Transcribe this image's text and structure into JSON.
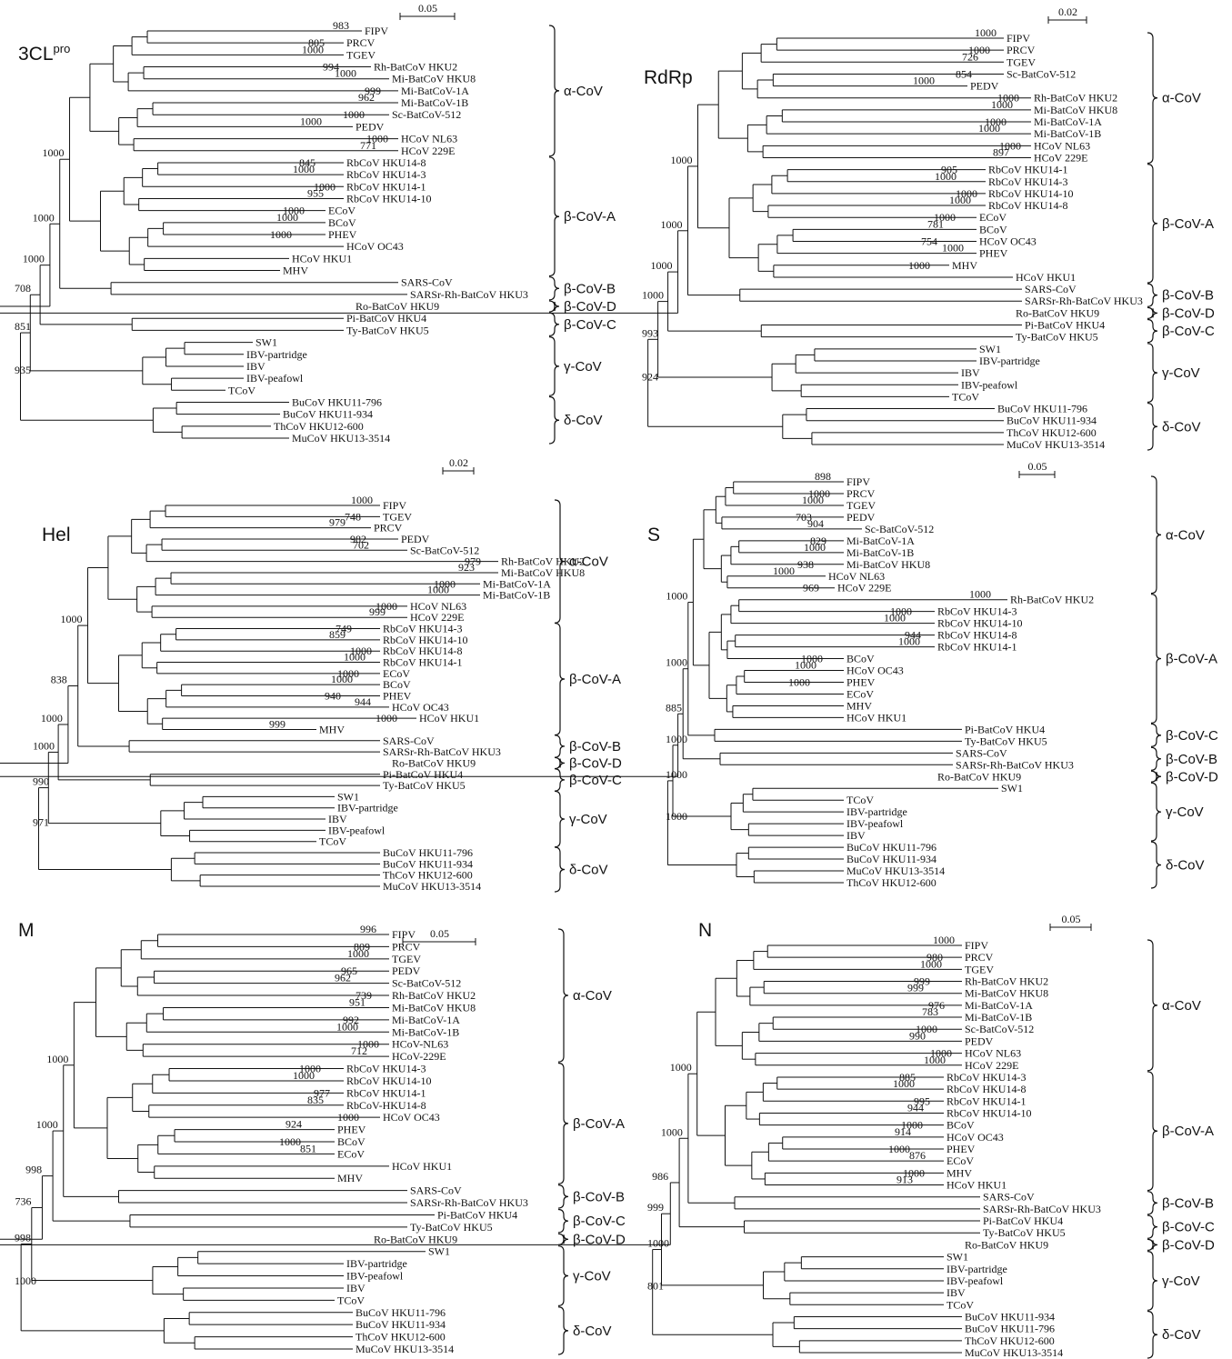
{
  "panels": [
    {
      "title": "3CL",
      "title_sup": "pro",
      "scale_label": "0.05",
      "tips": [
        "FIPV",
        "PRCV",
        "TGEV",
        "Rh-BatCoV HKU2",
        "Mi-BatCoV HKU8",
        "Mi-BatCoV-1A",
        "Mi-BatCoV-1B",
        "Sc-BatCoV-512",
        "PEDV",
        "HCoV NL63",
        "HCoV 229E",
        "RbCoV HKU14-8",
        "RbCoV HKU14-3",
        "RbCoV HKU14-1",
        "RbCoV HKU14-10",
        "ECoV",
        "BCoV",
        "PHEV",
        "HCoV OC43",
        "HCoV HKU1",
        "MHV",
        "SARS-CoV",
        "SARSr-Rh-BatCoV HKU3",
        "Ro-BatCoV HKU9",
        "Pi-BatCoV HKU4",
        "Ty-BatCoV HKU5",
        "SW1",
        "IBV-partridge",
        "IBV",
        "IBV-peafowl",
        "TCoV",
        "BuCoV HKU11-796",
        "BuCoV HKU11-934",
        "ThCoV HKU12-600",
        "MuCoV HKU13-3514"
      ],
      "bootstraps": [
        "1000",
        "1000",
        "1000",
        "708",
        "851",
        "935",
        "983",
        "805",
        "1000",
        "994",
        "1000",
        "999",
        "962",
        "1000",
        "1000",
        "1000",
        "771",
        "845",
        "1000",
        "1000",
        "955",
        "1000",
        "1000",
        "1000"
      ],
      "clades": [
        "α-CoV",
        "β-CoV-A",
        "β-CoV-B",
        "β-CoV-D",
        "β-CoV-C",
        "γ-CoV",
        "δ-CoV"
      ]
    },
    {
      "title": "RdRp",
      "title_sup": "",
      "scale_label": "0.02",
      "tips": [
        "FIPV",
        "PRCV",
        "TGEV",
        "Sc-BatCoV-512",
        "PEDV",
        "Rh-BatCoV HKU2",
        "Mi-BatCoV HKU8",
        "Mi-BatCoV-1A",
        "Mi-BatCoV-1B",
        "HCoV NL63",
        "HCoV 229E",
        "RbCoV HKU14-1",
        "RbCoV HKU14-3",
        "RbCoV HKU14-10",
        "RbCoV HKU14-8",
        "ECoV",
        "BCoV",
        "HCoV OC43",
        "PHEV",
        "MHV",
        "HCoV HKU1",
        "SARS-CoV",
        "SARSr-Rh-BatCoV HKU3",
        "Ro-BatCoV HKU9",
        "Pi-BatCoV HKU4",
        "Ty-BatCoV HKU5",
        "SW1",
        "IBV-partridge",
        "IBV",
        "IBV-peafowl",
        "TCoV",
        "BuCoV HKU11-796",
        "BuCoV HKU11-934",
        "ThCoV HKU12-600",
        "MuCoV HKU13-3514"
      ],
      "bootstraps": [
        "1000",
        "1000",
        "1000",
        "1000",
        "993",
        "924",
        "1000",
        "1000",
        "726",
        "854",
        "1000",
        "1000",
        "1000",
        "1000",
        "1000",
        "1000",
        "897",
        "905",
        "1000",
        "1000",
        "1000",
        "1000",
        "781",
        "754",
        "1000",
        "1000"
      ],
      "clades": [
        "α-CoV",
        "β-CoV-A",
        "β-CoV-B",
        "β-CoV-D",
        "β-CoV-C",
        "γ-CoV",
        "δ-CoV"
      ]
    },
    {
      "title": "Hel",
      "title_sup": "",
      "scale_label": "0.02",
      "tips": [
        "FIPV",
        "TGEV",
        "PRCV",
        "PEDV",
        "Sc-BatCoV-512",
        "Rh-BatCoV HKU2",
        "Mi-BatCoV HKU8",
        "Mi-BatCoV-1A",
        "Mi-BatCoV-1B",
        "HCoV NL63",
        "HCoV 229E",
        "RbCoV HKU14-3",
        "RbCoV HKU14-10",
        "RbCoV HKU14-8",
        "RbCoV HKU14-1",
        "ECoV",
        "BCoV",
        "PHEV",
        "HCoV OC43",
        "HCoV HKU1",
        "MHV",
        "SARS-CoV",
        "SARSr-Rh-BatCoV HKU3",
        "Ro-BatCoV HKU9",
        "Pi-BatCoV HKU4",
        "Ty-BatCoV HKU5",
        "SW1",
        "IBV-partridge",
        "IBV",
        "IBV-peafowl",
        "TCoV",
        "BuCoV HKU11-796",
        "BuCoV HKU11-934",
        "ThCoV HKU12-600",
        "MuCoV HKU13-3514"
      ],
      "bootstraps": [
        "1000",
        "838",
        "1000",
        "1000",
        "990",
        "971",
        "1000",
        "748",
        "979",
        "982",
        "702",
        "979",
        "923",
        "1000",
        "1000",
        "1000",
        "999",
        "749",
        "859",
        "1000",
        "1000",
        "1000",
        "1000",
        "940",
        "944",
        "1000",
        "999"
      ],
      "clades": [
        "α-CoV",
        "β-CoV-A",
        "β-CoV-B",
        "β-CoV-D",
        "β-CoV-C",
        "γ-CoV",
        "δ-CoV"
      ]
    },
    {
      "title": "S",
      "title_sup": "",
      "scale_label": "0.05",
      "tips": [
        "FIPV",
        "PRCV",
        "TGEV",
        "PEDV",
        "Sc-BatCoV-512",
        "Mi-BatCoV-1A",
        "Mi-BatCoV-1B",
        "Mi-BatCoV HKU8",
        "HCoV NL63",
        "HCoV 229E",
        "Rh-BatCoV HKU2",
        "RbCoV HKU14-3",
        "RbCoV HKU14-10",
        "RbCoV HKU14-8",
        "RbCoV HKU14-1",
        "BCoV",
        "HCoV OC43",
        "PHEV",
        "ECoV",
        "MHV",
        "HCoV HKU1",
        "Pi-BatCoV HKU4",
        "Ty-BatCoV HKU5",
        "SARS-CoV",
        "SARSr-Rh-BatCoV HKU3",
        "Ro-BatCoV HKU9",
        "SW1",
        "TCoV",
        "IBV-partridge",
        "IBV-peafowl",
        "IBV",
        "BuCoV HKU11-796",
        "BuCoV HKU11-934",
        "MuCoV HKU13-3514",
        "ThCoV HKU12-600"
      ],
      "bootstraps": [
        "1000",
        "1000",
        "885",
        "1000",
        "1000",
        "1000",
        "898",
        "1000",
        "1000",
        "703",
        "904",
        "829",
        "1000",
        "938",
        "1000",
        "969",
        "1000",
        "1000",
        "1000",
        "944",
        "1000",
        "1000",
        "1000",
        "1000"
      ],
      "clades": [
        "α-CoV",
        "β-CoV-A",
        "β-CoV-C",
        "β-CoV-B",
        "β-CoV-D",
        "γ-CoV",
        "δ-CoV"
      ]
    },
    {
      "title": "M",
      "title_sup": "",
      "scale_label": "0.05",
      "tips": [
        "FIPV",
        "PRCV",
        "TGEV",
        "PEDV",
        "Sc-BatCoV-512",
        "Rh-BatCoV HKU2",
        "Mi-BatCoV HKU8",
        "Mi-BatCoV-1A",
        "Mi-BatCoV-1B",
        "HCoV-NL63",
        "HCoV-229E",
        "RbCoV HKU14-3",
        "RbCoV HKU14-10",
        "RbCoV HKU14-1",
        "RbCoV-HKU14-8",
        "HCoV OC43",
        "PHEV",
        "BCoV",
        "ECoV",
        "HCoV HKU1",
        "MHV",
        "SARS-CoV",
        "SARSr-Rh-BatCoV HKU3",
        "Pi-BatCoV HKU4",
        "Ty-BatCoV HKU5",
        "Ro-BatCoV HKU9",
        "SW1",
        "IBV-partridge",
        "IBV-peafowl",
        "IBV",
        "TCoV",
        "BuCoV HKU11-796",
        "BuCoV HKU11-934",
        "ThCoV HKU12-600",
        "MuCoV HKU13-3514"
      ],
      "bootstraps": [
        "1000",
        "1000",
        "998",
        "736",
        "998",
        "1000",
        "996",
        "809",
        "1000",
        "965",
        "962",
        "739",
        "951",
        "992",
        "1000",
        "1000",
        "712",
        "1000",
        "1000",
        "977",
        "835",
        "1000",
        "924",
        "1000",
        "851"
      ],
      "clades": [
        "α-CoV",
        "β-CoV-A",
        "β-CoV-B",
        "β-CoV-C",
        "β-CoV-D",
        "γ-CoV",
        "δ-CoV"
      ]
    },
    {
      "title": "N",
      "title_sup": "",
      "scale_label": "0.05",
      "tips": [
        "FIPV",
        "PRCV",
        "TGEV",
        "Rh-BatCoV HKU2",
        "Mi-BatCoV HKU8",
        "Mi-BatCoV-1A",
        "Mi-BatCoV-1B",
        "Sc-BatCoV-512",
        "PEDV",
        "HCoV NL63",
        "HCoV 229E",
        "RbCoV HKU14-3",
        "RbCoV HKU14-8",
        "RbCoV HKU14-1",
        "RbCoV HKU14-10",
        "BCoV",
        "HCoV OC43",
        "PHEV",
        "ECoV",
        "MHV",
        "HCoV HKU1",
        "SARS-CoV",
        "SARSr-Rh-BatCoV HKU3",
        "Pi-BatCoV HKU4",
        "Ty-BatCoV HKU5",
        "Ro-BatCoV HKU9",
        "SW1",
        "IBV-partridge",
        "IBV-peafowl",
        "IBV",
        "TCoV",
        "BuCoV HKU11-934",
        "BuCoV HKU11-796",
        "ThCoV HKU12-600",
        "MuCoV HKU13-3514"
      ],
      "bootstraps": [
        "1000",
        "1000",
        "986",
        "999",
        "1000",
        "801",
        "1000",
        "980",
        "1000",
        "999",
        "999",
        "976",
        "783",
        "1000",
        "990",
        "1000",
        "1000",
        "885",
        "1000",
        "995",
        "944",
        "1000",
        "914",
        "1000",
        "876",
        "1000",
        "913"
      ],
      "clades": [
        "α-CoV",
        "β-CoV-A",
        "β-CoV-B",
        "β-CoV-C",
        "β-CoV-D",
        "γ-CoV",
        "δ-CoV"
      ]
    }
  ]
}
